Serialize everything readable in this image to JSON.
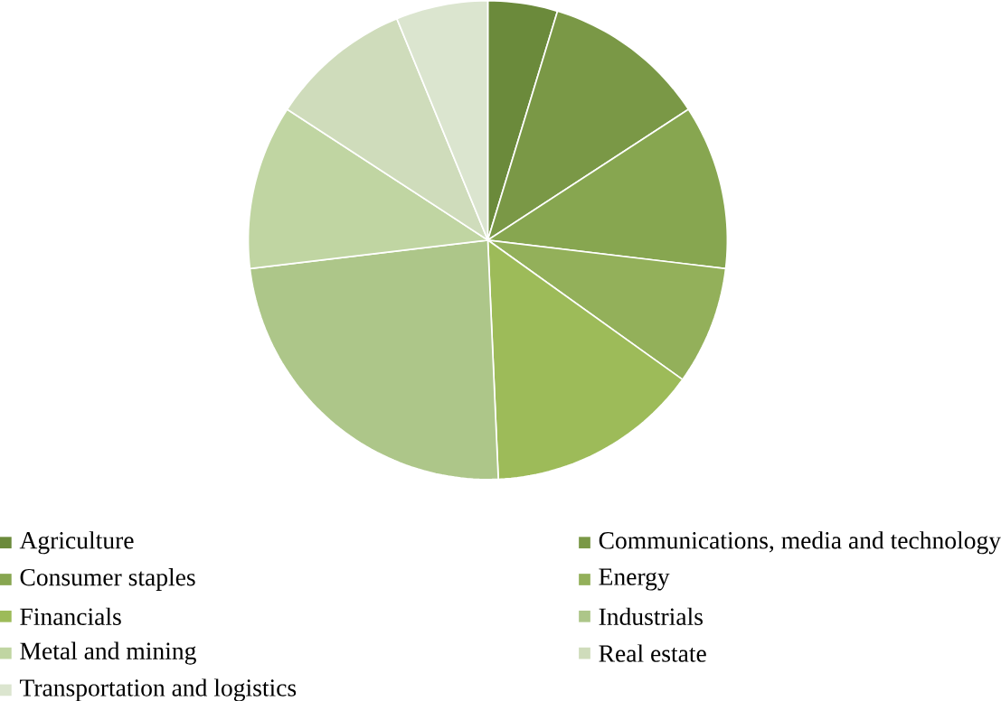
{
  "chart_data": {
    "type": "pie",
    "categories": [
      "Agriculture",
      "Communications, media and technology",
      "Consumer staples",
      "Energy",
      "Financials",
      "Industrials",
      "Metal and mining",
      "Real estate",
      "Transportation and logistics"
    ],
    "values": [
      4.7,
      11.1,
      11.1,
      8.0,
      14.4,
      23.8,
      11.1,
      9.6,
      6.2
    ],
    "colors": [
      "#6b8a3b",
      "#7a9846",
      "#87a650",
      "#93b05a",
      "#9dbb59",
      "#adc689",
      "#c0d5a2",
      "#cfdcbb",
      "#dbe5cf"
    ],
    "legend": "bottom"
  }
}
